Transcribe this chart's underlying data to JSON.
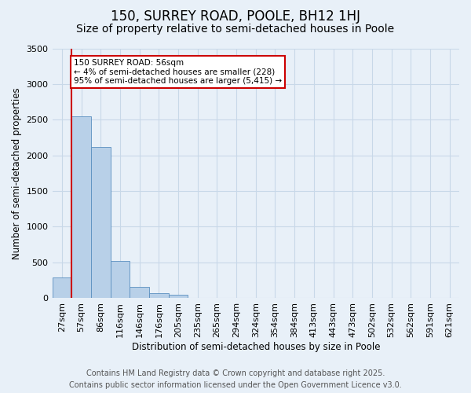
{
  "title": "150, SURREY ROAD, POOLE, BH12 1HJ",
  "subtitle": "Size of property relative to semi-detached houses in Poole",
  "xlabel": "Distribution of semi-detached houses by size in Poole",
  "ylabel": "Number of semi-detached properties",
  "categories": [
    "27sqm",
    "57sqm",
    "86sqm",
    "116sqm",
    "146sqm",
    "176sqm",
    "205sqm",
    "235sqm",
    "265sqm",
    "294sqm",
    "324sqm",
    "354sqm",
    "384sqm",
    "413sqm",
    "443sqm",
    "473sqm",
    "502sqm",
    "532sqm",
    "562sqm",
    "591sqm",
    "621sqm"
  ],
  "values": [
    290,
    2550,
    2120,
    520,
    155,
    65,
    45,
    0,
    0,
    0,
    0,
    0,
    0,
    0,
    0,
    0,
    0,
    0,
    0,
    0,
    0
  ],
  "bar_color": "#b8d0e8",
  "bar_edge_color": "#5a8fc0",
  "grid_color": "#c8d8e8",
  "background_color": "#e8f0f8",
  "property_line_color": "#cc0000",
  "annotation_title": "150 SURREY ROAD: 56sqm",
  "annotation_line1": "← 4% of semi-detached houses are smaller (228)",
  "annotation_line2": "95% of semi-detached houses are larger (5,415) →",
  "annotation_box_color": "#ffffff",
  "annotation_box_edge": "#cc0000",
  "ylim": [
    0,
    3500
  ],
  "yticks": [
    0,
    500,
    1000,
    1500,
    2000,
    2500,
    3000,
    3500
  ],
  "title_fontsize": 12,
  "subtitle_fontsize": 10,
  "axis_label_fontsize": 8.5,
  "tick_fontsize": 8,
  "annotation_fontsize": 7.5,
  "footer_fontsize": 7,
  "footer_line1": "Contains HM Land Registry data © Crown copyright and database right 2025.",
  "footer_line2": "Contains public sector information licensed under the Open Government Licence v3.0."
}
